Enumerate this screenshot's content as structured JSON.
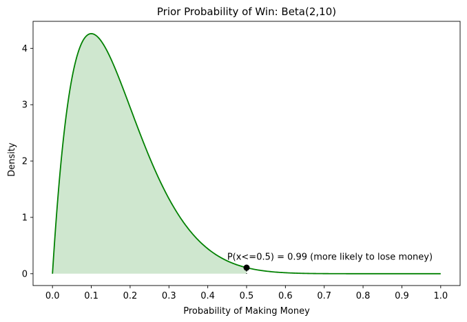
{
  "chart_data": {
    "type": "line",
    "title": "Prior Probability of Win: Beta(2,10)",
    "xlabel": "Probability of Making Money",
    "ylabel": "Density",
    "xlim": [
      -0.05,
      1.05
    ],
    "ylim": [
      -0.21,
      4.48
    ],
    "grid": false,
    "xticks": [
      0.0,
      0.1,
      0.2,
      0.3,
      0.4,
      0.5,
      0.6,
      0.7,
      0.8,
      0.9,
      1.0
    ],
    "xtick_labels": [
      "0.0",
      "0.1",
      "0.2",
      "0.3",
      "0.4",
      "0.5",
      "0.6",
      "0.7",
      "0.8",
      "0.9",
      "1.0"
    ],
    "yticks": [
      0,
      1,
      2,
      3,
      4
    ],
    "ytick_labels": [
      "0",
      "1",
      "2",
      "3",
      "4"
    ],
    "series": [
      {
        "distribution": "beta",
        "alpha": 2,
        "beta": 10,
        "x_range": [
          0.0,
          1.0
        ],
        "color": "#008000"
      }
    ],
    "shaded_region": {
      "x_from": 0.0,
      "x_to": 0.5,
      "color": "#008000",
      "opacity": 0.19
    },
    "marker": {
      "x": 0.5,
      "y": 0.107,
      "color": "#000000"
    },
    "annotation": {
      "text": "P(x<=0.5) = 0.99 (more likely to lose money)",
      "x": 0.45,
      "y": 0.25
    }
  }
}
